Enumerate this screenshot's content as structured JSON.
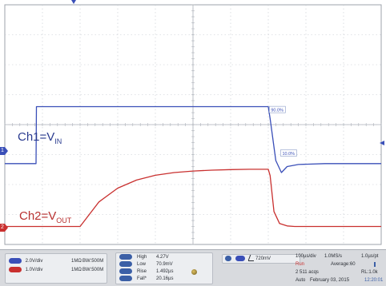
{
  "colors": {
    "ch1": "#3a4fb8",
    "ch2": "#c9302f",
    "grid": "#b8bcc4",
    "status_pill": "#3b5fa6"
  },
  "chart_data": {
    "type": "line",
    "xlim": [
      0,
      10
    ],
    "ylim": [
      -4,
      4
    ],
    "grid": true,
    "series": [
      {
        "name": "Ch1=VIN",
        "x": [
          0,
          0.8,
          0.83,
          0.84,
          1.5,
          3,
          5,
          7.0,
          7.05,
          7.2,
          7.35,
          7.5,
          7.8,
          8.5,
          9.3,
          10
        ],
        "y": [
          -1.3,
          -1.3,
          -1.3,
          0.6,
          0.6,
          0.6,
          0.6,
          0.6,
          0.2,
          -1.2,
          -1.6,
          -1.4,
          -1.33,
          -1.3,
          -1.3,
          -1.3
        ]
      },
      {
        "name": "Ch2=VOUT",
        "x": [
          0,
          1.0,
          2.0,
          2.5,
          3,
          3.5,
          4,
          4.5,
          5,
          5.5,
          6,
          6.5,
          7.0,
          7.05,
          7.15,
          7.3,
          7.5,
          7.7,
          8,
          8.5,
          9,
          9.5,
          10
        ],
        "y": [
          -3.4,
          -3.4,
          -3.4,
          -2.58,
          -2.12,
          -1.85,
          -1.69,
          -1.6,
          -1.55,
          -1.52,
          -1.5,
          -1.49,
          -1.49,
          -1.7,
          -2.9,
          -3.3,
          -3.38,
          -3.4,
          -3.4,
          -3.4,
          -3.4,
          -3.4,
          -3.4
        ]
      }
    ],
    "annotations": [
      "90.0%",
      "10.0%"
    ]
  },
  "labels": {
    "ch1_main": "Ch1=V",
    "ch1_sub": "IN",
    "ch2_main": "Ch2=V",
    "ch2_sub": "OUT"
  },
  "markers": {
    "ch1_marker": "1",
    "ch2_marker": "2"
  },
  "status": {
    "ch1_scale": "2.0V/div",
    "ch1_imp": "1MΩ",
    "ch1_bw": "BW:500M",
    "ch2_scale": "1.0V/div",
    "ch2_imp": "1MΩ",
    "ch2_bw": "BW:500M",
    "meas": [
      {
        "name": "High",
        "value": "4.27V"
      },
      {
        "name": "Low",
        "value": "70.9mV"
      },
      {
        "name": "Rise",
        "value": "1.492µs"
      },
      {
        "name": "Fall*",
        "value": "20.16µs"
      }
    ],
    "trigger_level": "720mV",
    "timebase": "100µs/div",
    "sample_rate": "1.0MS/s",
    "resolution": "1.0µs/pt",
    "run_state": "Run",
    "acq_mode": "Average:60",
    "acqs": "2 511 acqs",
    "rl": "RL:1.0k",
    "auto": "Auto",
    "date": "February 03, 2015",
    "time": "12:20:01"
  }
}
